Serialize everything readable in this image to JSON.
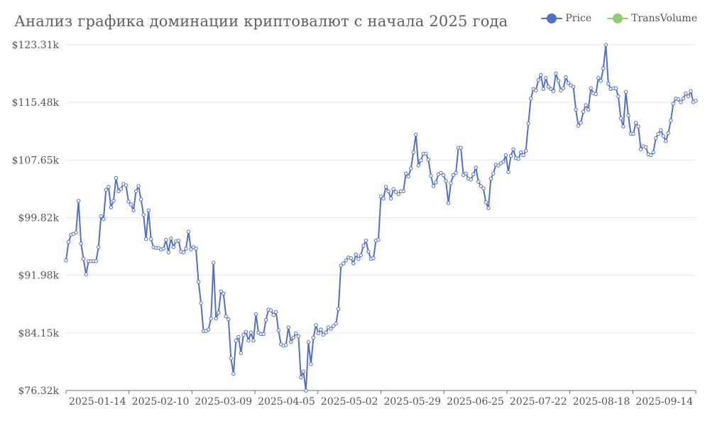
{
  "chart_data": {
    "type": "line",
    "title": "Анализ графика доминации криптовалют с начала 2025 года",
    "legend": [
      {
        "name": "Price",
        "color": "#5470c6"
      },
      {
        "name": "TransVolume",
        "color": "#91cc75"
      }
    ],
    "legend_position": "top-right",
    "grid": true,
    "ylim": [
      76.32,
      124.5
    ],
    "yticks": [
      76.32,
      84.15,
      91.98,
      99.82,
      107.65,
      115.48,
      123.31
    ],
    "ytick_labels": [
      "$76.32k",
      "$84.15k",
      "$91.98k",
      "$99.82k",
      "$107.65k",
      "$115.48k",
      "$123.31k"
    ],
    "xtick_labels": [
      "2025-01-14",
      "2025-02-10",
      "2025-03-09",
      "2025-04-05",
      "2025-05-02",
      "2025-05-29",
      "2025-06-25",
      "2025-07-22",
      "2025-08-18",
      "2025-09-14"
    ],
    "series": [
      {
        "name": "Price",
        "color": "#5470c6",
        "unit": "k USD",
        "values": [
          94.0,
          96.5,
          97.5,
          97.6,
          97.8,
          102.1,
          96.3,
          94.2,
          92.1,
          93.9,
          93.9,
          93.9,
          93.9,
          95.8,
          100.0,
          99.6,
          103.6,
          104.0,
          101.2,
          102.1,
          105.2,
          103.4,
          103.7,
          104.4,
          104.2,
          102.0,
          101.6,
          100.8,
          103.4,
          104.1,
          102.3,
          100.2,
          96.9,
          100.8,
          96.9,
          95.8,
          95.7,
          95.7,
          95.5,
          95.6,
          96.8,
          95.1,
          97.0,
          95.8,
          96.6,
          96.7,
          95.2,
          95.1,
          95.6,
          97.9,
          95.5,
          95.8,
          95.6,
          91.1,
          88.2,
          84.4,
          84.4,
          84.6,
          86.1,
          93.7,
          86.1,
          86.9,
          89.8,
          89.5,
          86.4,
          86.0,
          80.7,
          78.6,
          83.1,
          83.6,
          81.4,
          83.9,
          84.3,
          83.1,
          84.2,
          83.1,
          86.7,
          84.2,
          84.0,
          84.0,
          85.9,
          87.3,
          87.2,
          86.6,
          87.0,
          84.5,
          82.6,
          82.4,
          82.5,
          84.9,
          82.9,
          83.5,
          84.1,
          83.7,
          78.1,
          78.9,
          76.3,
          82.9,
          79.9,
          83.5,
          85.2,
          84.1,
          84.6,
          83.9,
          84.2,
          84.9,
          84.7,
          85.1,
          85.4,
          87.4,
          93.3,
          93.6,
          94.0,
          94.4,
          94.3,
          93.6,
          94.8,
          94.2,
          94.7,
          96.0,
          96.7,
          95.2,
          94.2,
          94.3,
          96.7,
          96.8,
          102.7,
          102.4,
          104.0,
          103.4,
          102.4,
          103.7,
          103.3,
          103.0,
          103.4,
          103.4,
          105.8,
          105.4,
          106.5,
          108.7,
          111.1,
          106.9,
          107.6,
          108.5,
          108.5,
          107.7,
          105.5,
          104.1,
          104.6,
          105.7,
          105.9,
          105.6,
          104.8,
          101.8,
          104.5,
          105.6,
          105.9,
          109.3,
          109.3,
          105.6,
          105.8,
          105.1,
          105.0,
          105.7,
          106.6,
          104.7,
          104.1,
          103.8,
          101.9,
          101.1,
          105.1,
          105.8,
          107.0,
          106.9,
          107.2,
          107.4,
          108.3,
          106.0,
          108.2,
          109.1,
          107.9,
          107.8,
          108.7,
          108.3,
          108.9,
          112.6,
          116.0,
          117.3,
          117.1,
          118.5,
          119.2,
          117.3,
          118.8,
          117.6,
          117.3,
          117.0,
          119.4,
          118.4,
          117.1,
          117.4,
          118.9,
          118.1,
          117.8,
          117.6,
          114.5,
          112.3,
          112.7,
          114.2,
          115.1,
          114.5,
          117.4,
          116.7,
          116.6,
          118.8,
          118.4,
          120.1,
          123.3,
          118.0,
          117.3,
          117.4,
          117.4,
          116.3,
          113.3,
          112.2,
          116.9,
          113.7,
          111.2,
          111.2,
          112.7,
          112.2,
          109.1,
          109.5,
          109.4,
          108.4,
          108.3,
          108.7,
          110.6,
          111.2,
          111.7,
          110.9,
          110.2,
          111.3,
          113.0,
          115.3,
          116.0,
          115.9,
          115.5,
          116.0,
          116.7,
          116.3,
          117.0,
          115.5,
          115.7
        ]
      },
      {
        "name": "TransVolume",
        "color": "#91cc75",
        "values": []
      }
    ]
  }
}
